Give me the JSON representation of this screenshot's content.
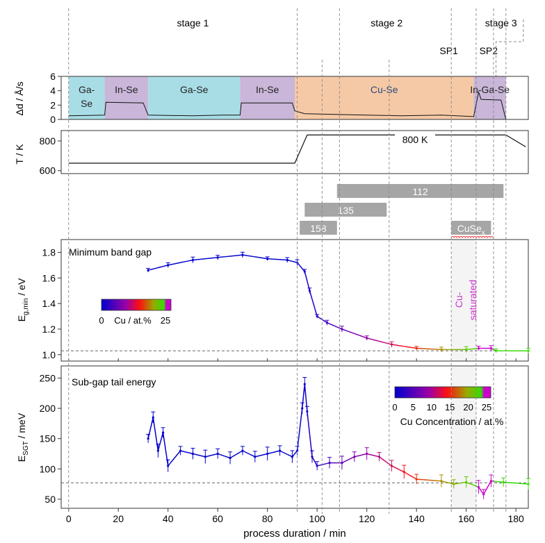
{
  "stages": [
    {
      "label": "stage 1",
      "x": 50
    },
    {
      "label": "stage 2",
      "x": 128
    },
    {
      "label": "stage 3",
      "x": 174
    }
  ],
  "set_points": [
    {
      "label": "SP1",
      "x": 153
    },
    {
      "label": "SP2",
      "x": 169
    }
  ],
  "dividers": [
    0,
    92,
    109,
    154,
    164,
    171,
    176
  ],
  "extra_dividers_lower": [
    102,
    129
  ],
  "regions": [
    {
      "label": "Ga-\nSe",
      "from": 0,
      "to": 14.5,
      "color": "#a9dde6"
    },
    {
      "label": "In-Se",
      "from": 14.5,
      "to": 32,
      "color": "#c9b6d8"
    },
    {
      "label": "Ga-Se",
      "from": 32,
      "to": 69,
      "color": "#a9dde6"
    },
    {
      "label": "In-Se",
      "from": 69,
      "to": 91,
      "color": "#c9b6d8"
    },
    {
      "label": "Cu-Se",
      "from": 91,
      "to": 163,
      "color": "#f6c9a6"
    },
    {
      "label": "In-Ga-Se",
      "from": 163,
      "to": 176,
      "color": "#c9b6d8"
    }
  ],
  "rate_panel": {
    "ylabel": "Δd / Å/s",
    "yticks": [
      0,
      2,
      4,
      6
    ],
    "ylim": [
      0,
      6
    ],
    "series": [
      [
        0,
        0.5
      ],
      [
        14.5,
        0.6
      ],
      [
        15,
        2.4
      ],
      [
        30,
        2.3
      ],
      [
        32,
        0.6
      ],
      [
        50,
        0.5
      ],
      [
        62,
        0.6
      ],
      [
        69,
        0.6
      ],
      [
        69.5,
        2.3
      ],
      [
        90,
        2.3
      ],
      [
        91,
        1.2
      ],
      [
        95,
        0.8
      ],
      [
        120,
        0.6
      ],
      [
        134,
        0.5
      ],
      [
        150,
        0.6
      ],
      [
        163,
        0.4
      ],
      [
        165,
        3.8
      ],
      [
        166,
        2.8
      ],
      [
        174,
        2.7
      ],
      [
        176,
        0
      ]
    ]
  },
  "temp_panel": {
    "ylabel": "T / K",
    "yticks": [
      600,
      800
    ],
    "ylim": [
      580,
      870
    ],
    "annotation": "800 K",
    "series": [
      [
        0,
        650
      ],
      [
        91,
        650
      ],
      [
        96,
        840
      ],
      [
        176,
        840
      ],
      [
        184,
        760
      ]
    ]
  },
  "phase_bars": [
    {
      "label": "112",
      "from": 108,
      "to": 175,
      "row": 0
    },
    {
      "label": "135",
      "from": 95,
      "to": 128,
      "row": 1
    },
    {
      "label": "158",
      "from": 93,
      "to": 108,
      "row": 2
    },
    {
      "label": "CuSe",
      "sub": "x",
      "from": 154,
      "to": 170,
      "row": 2
    }
  ],
  "colorbar_labels": {
    "small": [
      "0",
      "Cu / at.%",
      "25"
    ],
    "large_ticks": [
      "0",
      "5",
      "10",
      "15",
      "20",
      "25"
    ],
    "large_title": "Cu Concentration / at.%"
  },
  "band_gap_panel": {
    "annotation": "Minimum band gap",
    "ylabel_main": "E",
    "ylabel_sub": "g,min",
    "ylabel_tail": " / eV",
    "yticks": [
      1.0,
      1.2,
      1.4,
      1.6,
      1.8
    ],
    "ylim": [
      0.95,
      1.9
    ],
    "baseline": 1.03,
    "shade_label": "Cu-\nsaturated",
    "series": [
      [
        32,
        1.66
      ],
      [
        40,
        1.7
      ],
      [
        50,
        1.74
      ],
      [
        60,
        1.76
      ],
      [
        70,
        1.78
      ],
      [
        80,
        1.75
      ],
      [
        88,
        1.74
      ],
      [
        92,
        1.72
      ],
      [
        95,
        1.65
      ],
      [
        97,
        1.5
      ],
      [
        100,
        1.3
      ],
      [
        104,
        1.25
      ],
      [
        110,
        1.2
      ],
      [
        120,
        1.13
      ],
      [
        130,
        1.08
      ],
      [
        140,
        1.05
      ],
      [
        150,
        1.04
      ],
      [
        160,
        1.04
      ],
      [
        165,
        1.05
      ],
      [
        170,
        1.05
      ],
      [
        172,
        1.03
      ],
      [
        185,
        1.03
      ]
    ]
  },
  "tail_panel": {
    "annotation": "Sub-gap tail energy",
    "ylabel_main": "E",
    "ylabel_sub": "SGT",
    "ylabel_tail": " / meV",
    "yticks": [
      50,
      100,
      150,
      200,
      250
    ],
    "ylim": [
      35,
      270
    ],
    "baseline": 77,
    "series": [
      [
        32,
        150
      ],
      [
        34,
        185
      ],
      [
        36,
        130
      ],
      [
        38,
        160
      ],
      [
        40,
        105
      ],
      [
        45,
        130
      ],
      [
        50,
        125
      ],
      [
        55,
        120
      ],
      [
        60,
        125
      ],
      [
        65,
        118
      ],
      [
        70,
        130
      ],
      [
        75,
        120
      ],
      [
        80,
        125
      ],
      [
        85,
        130
      ],
      [
        90,
        120
      ],
      [
        92,
        130
      ],
      [
        94,
        200
      ],
      [
        95,
        240
      ],
      [
        96,
        195
      ],
      [
        98,
        120
      ],
      [
        100,
        105
      ],
      [
        105,
        110
      ],
      [
        110,
        110
      ],
      [
        115,
        120
      ],
      [
        120,
        125
      ],
      [
        125,
        120
      ],
      [
        130,
        105
      ],
      [
        135,
        95
      ],
      [
        140,
        83
      ],
      [
        150,
        80
      ],
      [
        155,
        75
      ],
      [
        160,
        78
      ],
      [
        165,
        70
      ],
      [
        167,
        58
      ],
      [
        170,
        80
      ],
      [
        175,
        78
      ],
      [
        185,
        75
      ]
    ]
  },
  "x_axis": {
    "label": "process duration / min",
    "ticks": [
      0,
      20,
      40,
      60,
      80,
      100,
      120,
      140,
      160,
      180
    ],
    "xlim": [
      -3,
      185
    ]
  }
}
